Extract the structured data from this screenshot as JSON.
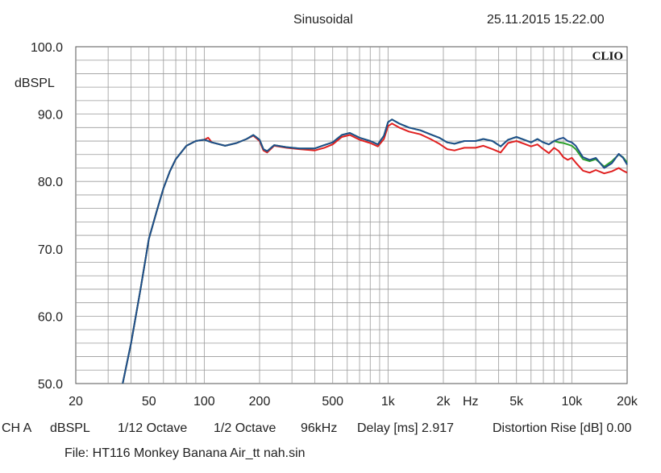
{
  "header": {
    "mode": "Sinusoidal",
    "datetime": "25.11.2015 15.22.00",
    "logo": "CLIO"
  },
  "footer": {
    "channel": "CH A",
    "unit": "dBSPL",
    "smoothing": "1/12 Octave",
    "window": "1/2 Octave",
    "samplerate": "96kHz",
    "delay": "Delay [ms] 2.917",
    "distortion": "Distortion Rise [dB] 0.00",
    "file": "File: HT116 Monkey Banana Air_tt nah.sin"
  },
  "chart_data": {
    "type": "line",
    "title": "Sinusoidal",
    "xlabel": "Hz",
    "ylabel": "dBSPL",
    "xscale": "log",
    "xlim": [
      20,
      20000
    ],
    "ylim": [
      50,
      100
    ],
    "grid": true,
    "legend": "none",
    "yticks": [
      {
        "value": 100,
        "label": "100.0"
      },
      {
        "value": 90,
        "label": "90.0"
      },
      {
        "value": 80,
        "label": "80.0"
      },
      {
        "value": 70,
        "label": "70.0"
      },
      {
        "value": 60,
        "label": "60.0"
      },
      {
        "value": 50,
        "label": "50.0"
      }
    ],
    "xticks": [
      {
        "value": 20,
        "label": "20"
      },
      {
        "value": 50,
        "label": "50"
      },
      {
        "value": 100,
        "label": "100"
      },
      {
        "value": 200,
        "label": "200"
      },
      {
        "value": 500,
        "label": "500"
      },
      {
        "value": 1000,
        "label": "1k"
      },
      {
        "value": 2000,
        "label": "2k"
      },
      {
        "value": 5000,
        "label": "5k"
      },
      {
        "value": 10000,
        "label": "10k"
      },
      {
        "value": 20000,
        "label": "20k"
      }
    ],
    "series": [
      {
        "color": "#e02020",
        "points": [
          [
            36,
            50
          ],
          [
            40,
            56
          ],
          [
            45,
            64
          ],
          [
            50,
            71.5
          ],
          [
            55,
            75.5
          ],
          [
            60,
            79
          ],
          [
            65,
            81.5
          ],
          [
            70,
            83.3
          ],
          [
            80,
            85.3
          ],
          [
            90,
            86
          ],
          [
            100,
            86.2
          ],
          [
            105,
            86.5
          ],
          [
            110,
            85.8
          ],
          [
            130,
            85.3
          ],
          [
            150,
            85.7
          ],
          [
            170,
            86.3
          ],
          [
            185,
            86.8
          ],
          [
            200,
            86
          ],
          [
            210,
            84.6
          ],
          [
            220,
            84.3
          ],
          [
            240,
            85.3
          ],
          [
            280,
            85
          ],
          [
            330,
            84.8
          ],
          [
            400,
            84.6
          ],
          [
            450,
            85
          ],
          [
            500,
            85.5
          ],
          [
            560,
            86.6
          ],
          [
            620,
            86.9
          ],
          [
            700,
            86.2
          ],
          [
            800,
            85.7
          ],
          [
            880,
            85.2
          ],
          [
            950,
            86.3
          ],
          [
            1000,
            88.2
          ],
          [
            1050,
            88.6
          ],
          [
            1150,
            88
          ],
          [
            1300,
            87.4
          ],
          [
            1500,
            87
          ],
          [
            1700,
            86.3
          ],
          [
            1900,
            85.6
          ],
          [
            2100,
            84.8
          ],
          [
            2300,
            84.6
          ],
          [
            2600,
            85
          ],
          [
            3000,
            85
          ],
          [
            3300,
            85.3
          ],
          [
            3700,
            84.8
          ],
          [
            4100,
            84.3
          ],
          [
            4500,
            85.7
          ],
          [
            5000,
            86
          ],
          [
            5500,
            85.6
          ],
          [
            6000,
            85.2
          ],
          [
            6500,
            85.5
          ],
          [
            7000,
            84.8
          ],
          [
            7500,
            84.2
          ],
          [
            8000,
            85
          ],
          [
            8500,
            84.5
          ],
          [
            9000,
            83.6
          ],
          [
            9500,
            83.2
          ],
          [
            10000,
            83.5
          ],
          [
            10500,
            82.8
          ],
          [
            11500,
            81.6
          ],
          [
            12500,
            81.3
          ],
          [
            13500,
            81.7
          ],
          [
            15000,
            81.2
          ],
          [
            16500,
            81.5
          ],
          [
            18000,
            82
          ],
          [
            19000,
            81.6
          ],
          [
            20000,
            81.3
          ]
        ]
      },
      {
        "color": "#2ca02c",
        "points": [
          [
            36,
            50
          ],
          [
            40,
            56
          ],
          [
            45,
            64
          ],
          [
            50,
            71.5
          ],
          [
            55,
            75.5
          ],
          [
            60,
            79
          ],
          [
            65,
            81.5
          ],
          [
            70,
            83.3
          ],
          [
            80,
            85.3
          ],
          [
            90,
            86
          ],
          [
            100,
            86.2
          ],
          [
            110,
            85.8
          ],
          [
            130,
            85.3
          ],
          [
            150,
            85.7
          ],
          [
            170,
            86.3
          ],
          [
            185,
            86.9
          ],
          [
            200,
            86.2
          ],
          [
            210,
            84.8
          ],
          [
            220,
            84.5
          ],
          [
            240,
            85.4
          ],
          [
            280,
            85.1
          ],
          [
            330,
            84.9
          ],
          [
            400,
            84.9
          ],
          [
            450,
            85.4
          ],
          [
            500,
            85.8
          ],
          [
            560,
            86.9
          ],
          [
            620,
            87.2
          ],
          [
            700,
            86.5
          ],
          [
            800,
            86
          ],
          [
            880,
            85.5
          ],
          [
            950,
            86.8
          ],
          [
            1000,
            88.8
          ],
          [
            1050,
            89.2
          ],
          [
            1150,
            88.6
          ],
          [
            1300,
            88
          ],
          [
            1500,
            87.6
          ],
          [
            1700,
            87
          ],
          [
            1900,
            86.5
          ],
          [
            2100,
            85.8
          ],
          [
            2300,
            85.6
          ],
          [
            2600,
            86
          ],
          [
            3000,
            86
          ],
          [
            3300,
            86.3
          ],
          [
            3700,
            86
          ],
          [
            4100,
            85.2
          ],
          [
            4500,
            86.2
          ],
          [
            5000,
            86.6
          ],
          [
            5500,
            86.2
          ],
          [
            6000,
            85.8
          ],
          [
            6500,
            86.3
          ],
          [
            7000,
            85.8
          ],
          [
            7500,
            85.5
          ],
          [
            8000,
            86
          ],
          [
            8500,
            85.8
          ],
          [
            9000,
            85.7
          ],
          [
            9500,
            85.5
          ],
          [
            10000,
            85.3
          ],
          [
            10500,
            84.8
          ],
          [
            11500,
            83.3
          ],
          [
            12500,
            83
          ],
          [
            13500,
            83.3
          ],
          [
            15000,
            82.2
          ],
          [
            16500,
            83
          ],
          [
            18000,
            84
          ],
          [
            19000,
            83.6
          ],
          [
            20000,
            82.8
          ]
        ]
      },
      {
        "color": "#1f4e8c",
        "points": [
          [
            36,
            50
          ],
          [
            40,
            56
          ],
          [
            45,
            64
          ],
          [
            50,
            71.5
          ],
          [
            55,
            75.5
          ],
          [
            60,
            79
          ],
          [
            65,
            81.5
          ],
          [
            70,
            83.3
          ],
          [
            80,
            85.3
          ],
          [
            90,
            86
          ],
          [
            100,
            86.2
          ],
          [
            110,
            85.8
          ],
          [
            130,
            85.3
          ],
          [
            150,
            85.7
          ],
          [
            170,
            86.3
          ],
          [
            185,
            86.9
          ],
          [
            200,
            86.2
          ],
          [
            210,
            84.8
          ],
          [
            220,
            84.5
          ],
          [
            240,
            85.4
          ],
          [
            280,
            85.1
          ],
          [
            330,
            84.9
          ],
          [
            400,
            84.9
          ],
          [
            450,
            85.4
          ],
          [
            500,
            85.8
          ],
          [
            560,
            86.9
          ],
          [
            620,
            87.2
          ],
          [
            700,
            86.5
          ],
          [
            800,
            86
          ],
          [
            880,
            85.5
          ],
          [
            950,
            86.8
          ],
          [
            1000,
            88.8
          ],
          [
            1050,
            89.2
          ],
          [
            1150,
            88.6
          ],
          [
            1300,
            88
          ],
          [
            1500,
            87.6
          ],
          [
            1700,
            87
          ],
          [
            1900,
            86.5
          ],
          [
            2100,
            85.8
          ],
          [
            2300,
            85.6
          ],
          [
            2600,
            86
          ],
          [
            3000,
            86
          ],
          [
            3300,
            86.3
          ],
          [
            3700,
            86
          ],
          [
            4100,
            85.2
          ],
          [
            4500,
            86.2
          ],
          [
            5000,
            86.6
          ],
          [
            5500,
            86.2
          ],
          [
            6000,
            85.8
          ],
          [
            6500,
            86.3
          ],
          [
            7000,
            85.8
          ],
          [
            7500,
            85.5
          ],
          [
            8000,
            86
          ],
          [
            8500,
            86.3
          ],
          [
            9000,
            86.5
          ],
          [
            9500,
            86
          ],
          [
            10000,
            85.8
          ],
          [
            10500,
            85.3
          ],
          [
            11500,
            83.6
          ],
          [
            12500,
            83.2
          ],
          [
            13500,
            83.5
          ],
          [
            15000,
            82
          ],
          [
            16500,
            82.7
          ],
          [
            18000,
            84.1
          ],
          [
            19000,
            83.5
          ],
          [
            20000,
            82.5
          ]
        ]
      }
    ]
  }
}
